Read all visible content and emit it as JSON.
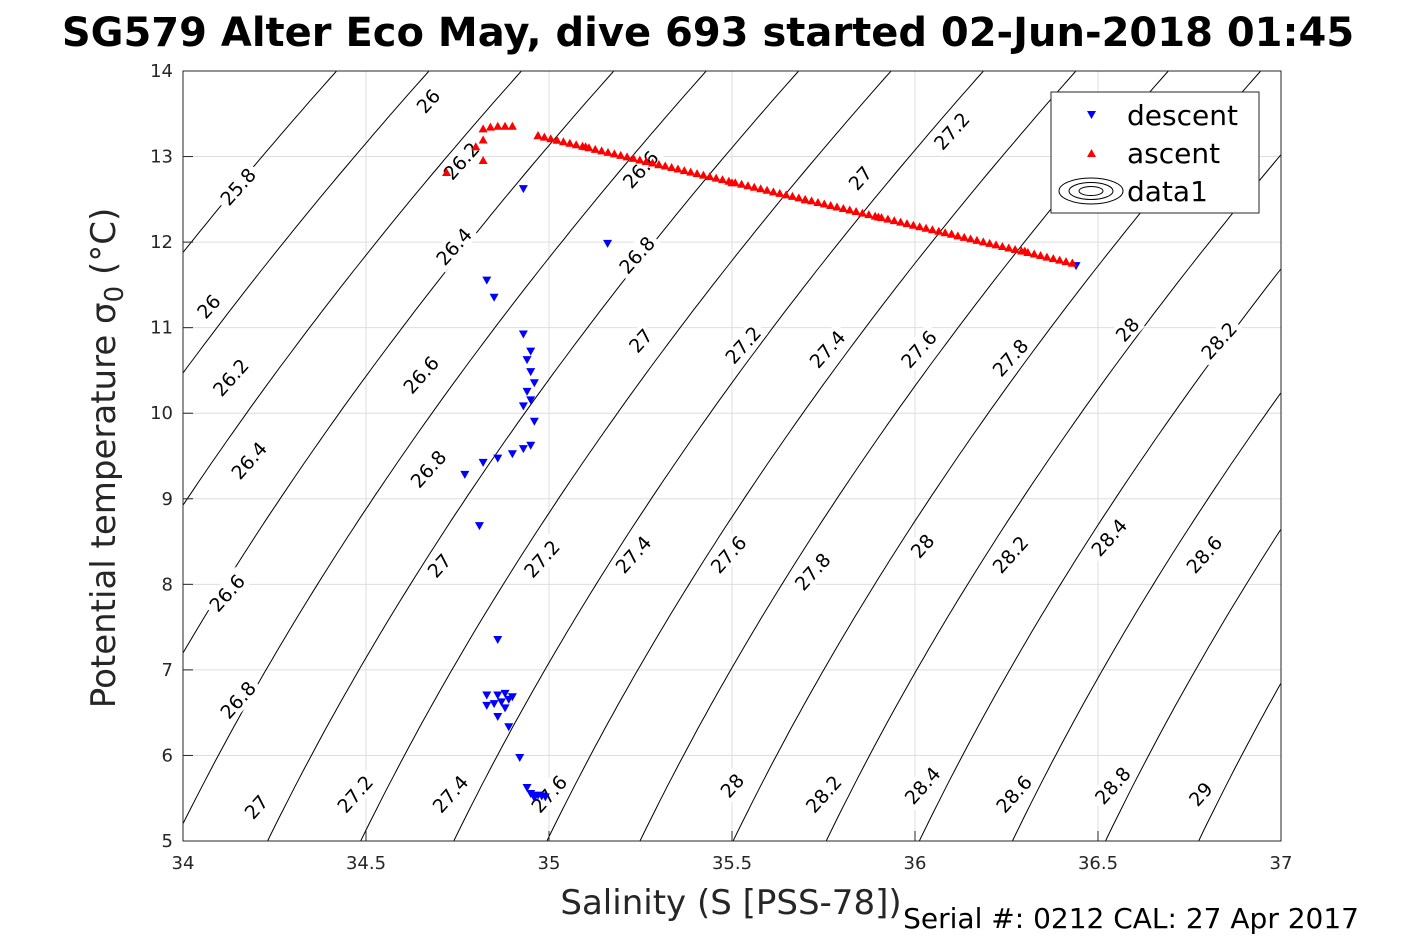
{
  "chart_data": {
    "type": "scatter",
    "title": "SG579 Alter Eco May, dive 693 started 02-Jun-2018 01:45",
    "xlabel": "Salinity (S [PSS-78])",
    "ylabel": "Potential temperature σ₀ (°C)",
    "xlim": [
      34,
      37
    ],
    "ylim": [
      5,
      14
    ],
    "x_ticks": [
      "34",
      "34.5",
      "35",
      "35.5",
      "36",
      "36.5",
      "37"
    ],
    "y_ticks": [
      "5",
      "6",
      "7",
      "8",
      "9",
      "10",
      "11",
      "12",
      "13",
      "14"
    ],
    "grid": true,
    "legend_position": "top-right",
    "legend": [
      "descent",
      "ascent",
      "data1"
    ],
    "series": [
      {
        "name": "descent",
        "marker": "triangle-down",
        "color": "#0000ff",
        "points": [
          [
            34.93,
            12.62
          ],
          [
            35.16,
            11.98
          ],
          [
            34.83,
            11.55
          ],
          [
            34.85,
            11.35
          ],
          [
            34.93,
            10.92
          ],
          [
            34.95,
            10.72
          ],
          [
            34.94,
            10.62
          ],
          [
            34.95,
            10.48
          ],
          [
            34.96,
            10.35
          ],
          [
            34.94,
            10.25
          ],
          [
            34.95,
            10.15
          ],
          [
            34.93,
            10.08
          ],
          [
            34.96,
            9.9
          ],
          [
            34.95,
            9.62
          ],
          [
            34.93,
            9.58
          ],
          [
            34.9,
            9.52
          ],
          [
            34.86,
            9.47
          ],
          [
            34.82,
            9.42
          ],
          [
            34.77,
            9.28
          ],
          [
            34.81,
            8.68
          ],
          [
            34.86,
            7.35
          ],
          [
            34.83,
            6.7
          ],
          [
            34.86,
            6.7
          ],
          [
            34.88,
            6.72
          ],
          [
            34.9,
            6.68
          ],
          [
            34.89,
            6.65
          ],
          [
            34.87,
            6.62
          ],
          [
            34.85,
            6.6
          ],
          [
            34.83,
            6.58
          ],
          [
            34.88,
            6.55
          ],
          [
            34.86,
            6.45
          ],
          [
            34.89,
            6.33
          ],
          [
            34.92,
            5.97
          ],
          [
            34.94,
            5.62
          ],
          [
            34.95,
            5.55
          ],
          [
            34.96,
            5.52
          ],
          [
            34.97,
            5.53
          ],
          [
            34.98,
            5.52
          ],
          [
            34.99,
            5.51
          ],
          [
            34.96,
            5.5
          ],
          [
            36.44,
            11.72
          ]
        ]
      },
      {
        "name": "ascent",
        "marker": "triangle-up",
        "color": "#ff0000",
        "points": [
          [
            34.72,
            12.82
          ],
          [
            34.8,
            13.12
          ],
          [
            34.82,
            13.2
          ],
          [
            34.82,
            12.96
          ],
          [
            34.82,
            13.33
          ],
          [
            34.84,
            13.35
          ],
          [
            34.86,
            13.36
          ],
          [
            34.88,
            13.36
          ],
          [
            34.9,
            13.36
          ],
          [
            34.97,
            13.25
          ],
          [
            35.1,
            13.12
          ],
          [
            35.3,
            12.91
          ],
          [
            35.5,
            12.7
          ],
          [
            35.7,
            12.5
          ],
          [
            35.9,
            12.3
          ],
          [
            36.1,
            12.1
          ],
          [
            36.3,
            11.9
          ],
          [
            36.43,
            11.76
          ]
        ],
        "line_segments": [
          {
            "from": [
              34.97,
              13.25
            ],
            "to": [
              36.43,
              11.76
            ],
            "count": 85
          }
        ]
      }
    ],
    "contours": [
      {
        "label": "25.8",
        "label_positions": [
          [
            34.15,
            12.65
          ]
        ]
      },
      {
        "label": "26",
        "label_positions": [
          [
            34.67,
            13.65
          ],
          [
            34.07,
            11.25
          ]
        ]
      },
      {
        "label": "26.2",
        "label_positions": [
          [
            34.76,
            12.95
          ],
          [
            34.13,
            10.42
          ]
        ]
      },
      {
        "label": "26.4",
        "label_positions": [
          [
            34.74,
            11.95
          ],
          [
            34.18,
            9.45
          ]
        ]
      },
      {
        "label": "26.6",
        "label_positions": [
          [
            35.25,
            12.85
          ],
          [
            34.65,
            10.45
          ],
          [
            34.12,
            7.9
          ]
        ]
      },
      {
        "label": "26.8",
        "label_positions": [
          [
            35.24,
            11.85
          ],
          [
            34.67,
            9.35
          ],
          [
            34.15,
            6.65
          ]
        ]
      },
      {
        "label": "27",
        "label_positions": [
          [
            35.85,
            12.75
          ],
          [
            35.25,
            10.85
          ],
          [
            34.7,
            8.22
          ],
          [
            34.2,
            5.4
          ]
        ]
      },
      {
        "label": "27.2",
        "label_positions": [
          [
            36.1,
            13.3
          ],
          [
            35.53,
            10.8
          ],
          [
            34.98,
            8.3
          ],
          [
            34.47,
            5.55
          ]
        ]
      },
      {
        "label": "27.4",
        "label_positions": [
          [
            35.76,
            10.75
          ],
          [
            35.23,
            8.35
          ],
          [
            34.73,
            5.55
          ]
        ]
      },
      {
        "label": "27.6",
        "label_positions": [
          [
            36.01,
            10.75
          ],
          [
            35.49,
            8.35
          ],
          [
            35.0,
            5.55
          ]
        ]
      },
      {
        "label": "27.8",
        "label_positions": [
          [
            36.26,
            10.65
          ],
          [
            35.72,
            8.15
          ]
        ]
      },
      {
        "label": "28",
        "label_positions": [
          [
            36.58,
            10.98
          ],
          [
            36.02,
            8.45
          ],
          [
            35.5,
            5.65
          ]
        ]
      },
      {
        "label": "28.2",
        "label_positions": [
          [
            36.83,
            10.85
          ],
          [
            36.26,
            8.35
          ],
          [
            35.75,
            5.55
          ]
        ]
      },
      {
        "label": "28.4",
        "label_positions": [
          [
            36.53,
            8.55
          ],
          [
            36.02,
            5.65
          ]
        ]
      },
      {
        "label": "28.6",
        "label_positions": [
          [
            36.79,
            8.35
          ],
          [
            36.27,
            5.55
          ]
        ]
      },
      {
        "label": "28.8",
        "label_positions": [
          [
            36.54,
            5.65
          ]
        ]
      },
      {
        "label": "29",
        "label_positions": [
          [
            36.78,
            5.55
          ]
        ]
      }
    ]
  },
  "footer": "Serial #: 0212  CAL: 27 Apr 2017"
}
